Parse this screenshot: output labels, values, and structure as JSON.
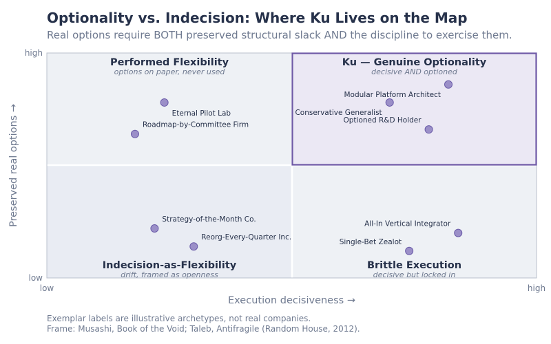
{
  "chart": {
    "title": "Optionality vs. Indecision: Where Ku Lives on the Map",
    "subtitle": "Real options require BOTH preserved structural slack AND the discipline to exercise them.",
    "footnote_1": "Exemplar labels are illustrative archetypes, not real companies.",
    "footnote_2": "Frame: Musashi, Book of the Void; Taleb, Antifragile (Random House, 2012)."
  },
  "chart_data": {
    "type": "scatter",
    "xlabel": "Execution decisiveness  →",
    "ylabel": "Preserved real options  →",
    "x_ticks": [
      "low",
      "high"
    ],
    "y_ticks": [
      "low",
      "high"
    ],
    "xlim": [
      0,
      1
    ],
    "ylim": [
      0,
      1
    ],
    "grid": false,
    "colors": {
      "point_fill": "#9b8fc8",
      "point_stroke": "#6a5ba8",
      "highlight_border": "#6f5aa6",
      "highlight_fill": "#ebe8f4",
      "quadrant_fill": "#eef1f5",
      "quadrant_fill_alt": "#e9ecf3"
    },
    "quadrants": [
      {
        "id": "top-left",
        "title": "Performed Flexibility",
        "subtitle": "options on paper, never used",
        "highlight": false
      },
      {
        "id": "top-right",
        "title": "Ku — Genuine Optionality",
        "subtitle": "decisive AND optioned",
        "highlight": true
      },
      {
        "id": "bottom-left",
        "title": "Indecision-as-Flexibility",
        "subtitle": "drift, framed as openness",
        "highlight": false
      },
      {
        "id": "bottom-right",
        "title": "Brittle Execution",
        "subtitle": "decisive but locked in",
        "highlight": false
      }
    ],
    "points": [
      {
        "label": "Eternal Pilot Lab",
        "x": 0.24,
        "y": 0.78
      },
      {
        "label": "Roadmap-by-Committee Firm",
        "x": 0.18,
        "y": 0.64
      },
      {
        "label": "Modular Platform Architect",
        "x": 0.82,
        "y": 0.86
      },
      {
        "label": "Conservative Generalist",
        "x": 0.7,
        "y": 0.78
      },
      {
        "label": "Optioned R&D Holder",
        "x": 0.78,
        "y": 0.66
      },
      {
        "label": "Strategy-of-the-Month Co.",
        "x": 0.22,
        "y": 0.22
      },
      {
        "label": "Reorg-Every-Quarter Inc.",
        "x": 0.3,
        "y": 0.14
      },
      {
        "label": "All-In Vertical Integrator",
        "x": 0.84,
        "y": 0.2
      },
      {
        "label": "Single-Bet Zealot",
        "x": 0.74,
        "y": 0.12
      }
    ]
  }
}
